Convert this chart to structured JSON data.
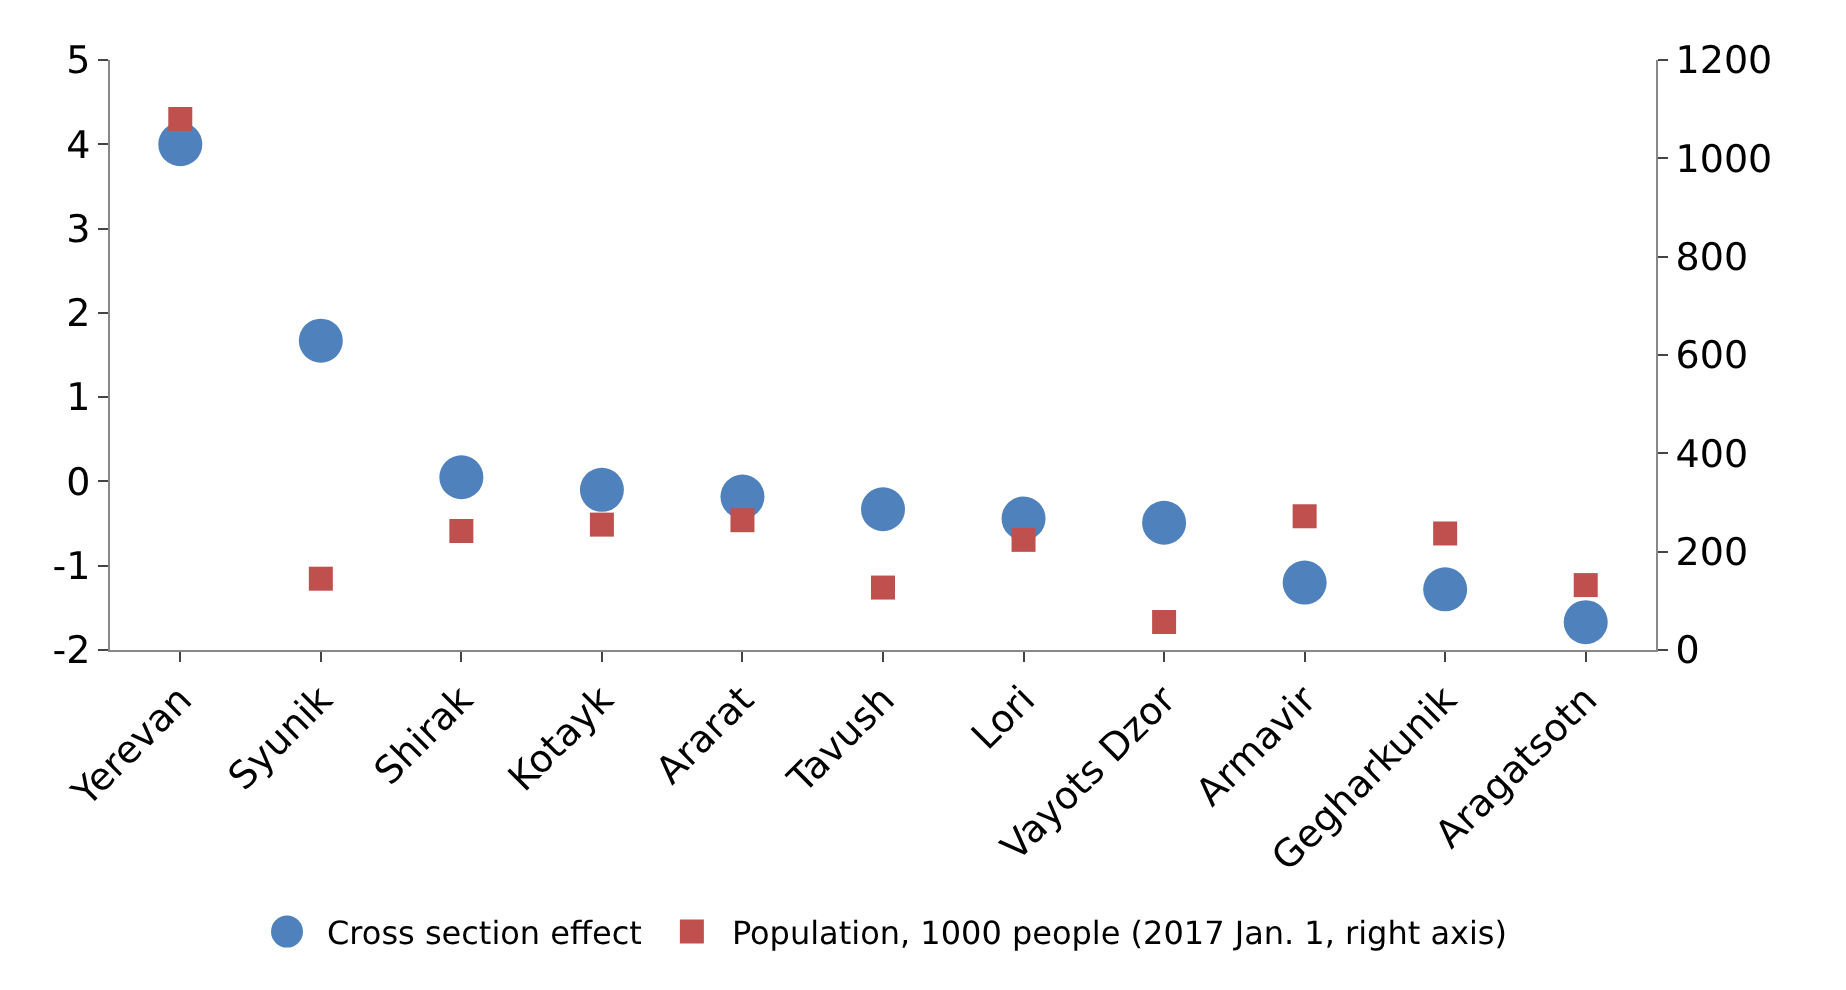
{
  "chart_data": {
    "type": "scatter",
    "categories": [
      "Yerevan",
      "Syunik",
      "Shirak",
      "Kotayk",
      "Ararat",
      "Tavush",
      "Lori",
      "Vayots Dzor",
      "Armavir",
      "Gegharkunik",
      "Aragatsotn"
    ],
    "series": [
      {
        "name": "Cross section effect",
        "color": "#4f81bd",
        "marker": "circle",
        "values": [
          4.0,
          1.67,
          0.05,
          -0.1,
          -0.18,
          -0.33,
          -0.44,
          -0.49,
          -1.2,
          -1.28,
          -1.67
        ]
      },
      {
        "name": "Population, 1000 people (2017 Jan. 1, right axis)",
        "color": "#c0504d",
        "marker": "square",
        "axis": "y2",
        "values": [
          1080,
          145,
          242,
          255,
          264,
          127,
          224,
          57,
          272,
          237,
          132
        ]
      }
    ],
    "ylim": [
      -2,
      5
    ],
    "yticks": [
      -2,
      -1,
      0,
      1,
      2,
      3,
      4,
      5
    ],
    "y2lim": [
      0,
      1200
    ],
    "y2ticks": [
      0,
      200,
      400,
      600,
      800,
      1000,
      1200
    ],
    "legend": "bottom"
  }
}
